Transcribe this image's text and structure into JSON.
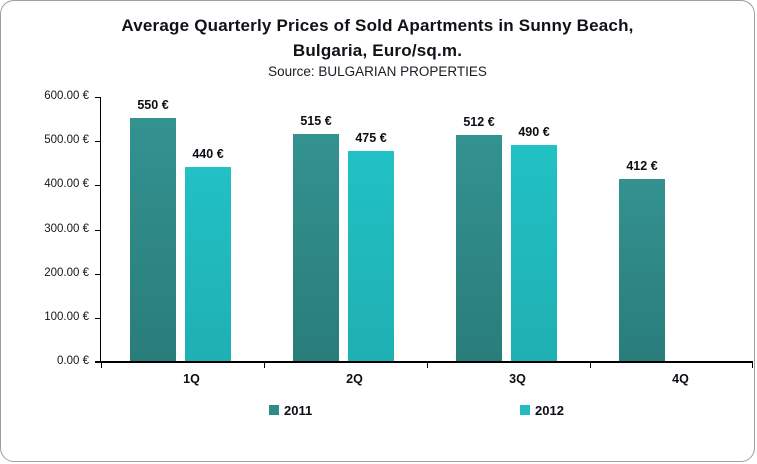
{
  "chart_data": {
    "type": "bar",
    "title_lines": [
      "Average Quarterly Prices of Sold Apartments in Sunny Beach,",
      "Bulgaria, Euro/sq.m."
    ],
    "subtitle": "Source: BULGARIAN PROPERTIES",
    "categories": [
      "1Q",
      "2Q",
      "3Q",
      "4Q"
    ],
    "series": [
      {
        "name": "2011",
        "color_top": "#339290",
        "color_bottom": "#297d7a",
        "legend_color": "#2e8b8a",
        "values": [
          550,
          515,
          512,
          412
        ],
        "value_labels": [
          "550 €",
          "515 €",
          "512 €",
          "412 €"
        ]
      },
      {
        "name": "2012",
        "color_top": "#21c1c4",
        "color_bottom": "#1fb0b3",
        "legend_color": "#25bcc0",
        "values": [
          440,
          475,
          490,
          null
        ],
        "value_labels": [
          "440 €",
          "475 €",
          "490 €",
          null
        ]
      }
    ],
    "ylim": [
      0,
      600
    ],
    "ytick_step": 100,
    "ytick_labels": [
      "0.00 €",
      "100.00 €",
      "200.00 €",
      "300.00 €",
      "400.00 €",
      "500.00 €",
      "600.00 €"
    ],
    "xlabel": "",
    "ylabel": "",
    "grid": false,
    "legend_position": "bottom",
    "axis_color": "#000000",
    "text_color": "#0d0d14"
  }
}
